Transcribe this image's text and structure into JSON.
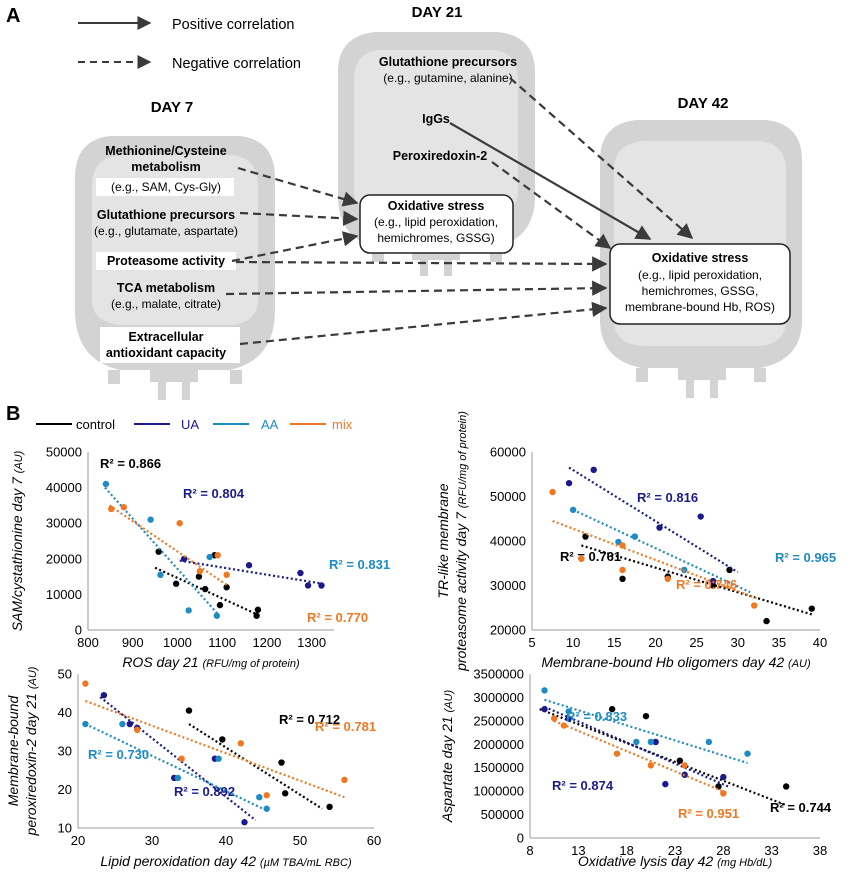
{
  "panel_a": {
    "label": "A",
    "legend": {
      "positive": "Positive correlation",
      "negative": "Negative correlation"
    },
    "day7": {
      "title": "DAY 7",
      "items": [
        {
          "title1": "Methionine/Cysteine",
          "title2": "metabolism",
          "sub": "(e.g., SAM, Cys-Gly)"
        },
        {
          "title1": "Glutathione precursors",
          "sub": "(e.g., glutamate, aspartate)"
        },
        {
          "title1": "Proteasome activity"
        },
        {
          "title1": "TCA metabolism",
          "sub": "(e.g., malate, citrate)"
        },
        {
          "title1": "Extracellular",
          "title2": "antioxidant capacity"
        }
      ]
    },
    "day21": {
      "title": "DAY 21",
      "items": [
        {
          "title1": "Glutathione precursors",
          "sub": "(e.g., gutamine, alanine)"
        },
        {
          "title1": "IgGs"
        },
        {
          "title1": "Peroxiredoxin-2"
        }
      ],
      "box": {
        "title": "Oxidative stress",
        "line1": "(e.g., lipid peroxidation,",
        "line2": "hemichromes, GSSG)"
      }
    },
    "day42": {
      "title": "DAY 42",
      "box": {
        "title": "Oxidative stress",
        "line1": "(e.g., lipid peroxidation,",
        "line2": "hemichromes, GSSG,",
        "line3": "membrane-bound Hb, ROS)"
      }
    }
  },
  "panel_b": {
    "label": "B",
    "legend": [
      {
        "name": "control",
        "color": "#000000"
      },
      {
        "name": "UA",
        "color": "#1a1a8c"
      },
      {
        "name": "AA",
        "color": "#1e8bc3"
      },
      {
        "name": "mix",
        "color": "#f07822"
      }
    ]
  },
  "chart_data": [
    {
      "type": "scatter",
      "ylabel": "SAM/cystathionine day 7",
      "yunit": "(AU)",
      "xlabel": "ROS day 21",
      "xunit": "(RFU/mg of protein)",
      "xlim": [
        800,
        1350
      ],
      "ylim": [
        0,
        50000
      ],
      "xticks": [
        800,
        900,
        1000,
        1100,
        1200,
        1300
      ],
      "yticks": [
        0,
        10000,
        20000,
        30000,
        40000,
        50000
      ],
      "series": [
        {
          "name": "control",
          "color": "#000000",
          "r2": "R² = 0.866",
          "x": [
            958,
            997,
            1048,
            1062,
            1083,
            1095,
            1110,
            1177,
            1180
          ],
          "y": [
            22000,
            13000,
            15000,
            11500,
            21000,
            7000,
            12000,
            4000,
            5700
          ],
          "fit": [
            [
              950,
              17500
            ],
            [
              1185,
              4000
            ]
          ]
        },
        {
          "name": "UA",
          "color": "#1a1a8c",
          "r2": "R² = 0.804",
          "x": [
            1015,
            1160,
            1275,
            1292,
            1322
          ],
          "y": [
            20000,
            18200,
            16000,
            12500,
            12500
          ],
          "fit": [
            [
              1005,
              19500
            ],
            [
              1325,
              13000
            ]
          ]
        },
        {
          "name": "AA",
          "color": "#1e8bc3",
          "r2": "R² = 0.831",
          "x": [
            840,
            940,
            962,
            1025,
            1072,
            1088
          ],
          "y": [
            41000,
            31000,
            15500,
            5500,
            20500,
            4000
          ],
          "fit": [
            [
              838,
              40000
            ],
            [
              1090,
              4500
            ]
          ]
        },
        {
          "name": "mix",
          "color": "#f07822",
          "r2": "R² = 0.770",
          "x": [
            852,
            880,
            1005,
            1050,
            1090,
            1110
          ],
          "y": [
            34000,
            34500,
            30000,
            16500,
            21000,
            15500
          ],
          "fit": [
            [
              848,
              35000
            ],
            [
              1112,
              12500
            ]
          ]
        }
      ]
    },
    {
      "type": "scatter",
      "ylabel": "TR-like membrane proteasome activity day 7",
      "yunit": "(RFU/mg of protein)",
      "xlabel": "Membrane-bound Hb oligomers day 42",
      "xunit": "(AU)",
      "xlim": [
        5,
        40
      ],
      "ylim": [
        20000,
        60000
      ],
      "xticks": [
        5,
        10,
        15,
        20,
        25,
        30,
        35,
        40
      ],
      "yticks": [
        20000,
        30000,
        40000,
        50000,
        60000
      ],
      "series": [
        {
          "name": "control",
          "color": "#000000",
          "r2": "R² = 0.761",
          "x": [
            11.5,
            16,
            21.5,
            27,
            29,
            33.5,
            39
          ],
          "y": [
            41000,
            31500,
            32000,
            30000,
            33500,
            22000,
            24800
          ],
          "fit": [
            [
              11,
              39000
            ],
            [
              39,
              23500
            ]
          ]
        },
        {
          "name": "UA",
          "color": "#1a1a8c",
          "r2": "R² = 0.816",
          "x": [
            9.5,
            12.5,
            20.5,
            25.5,
            27
          ],
          "y": [
            53000,
            56000,
            43000,
            45500,
            31000
          ],
          "fit": [
            [
              9.5,
              56500
            ],
            [
              30,
              33000
            ]
          ]
        },
        {
          "name": "AA",
          "color": "#1e8bc3",
          "r2": "R² = 0.965",
          "x": [
            10,
            15.5,
            17.5,
            23.5
          ],
          "y": [
            47000,
            39800,
            41000,
            33500
          ],
          "fit": [
            [
              10,
              47000
            ],
            [
              31.5,
              28500
            ]
          ]
        },
        {
          "name": "mix",
          "color": "#f07822",
          "r2": "R² = 0.746",
          "x": [
            7.5,
            11,
            16,
            16,
            21.5,
            32
          ],
          "y": [
            51000,
            36000,
            39000,
            33500,
            31500,
            25500
          ],
          "fit": [
            [
              7.5,
              44500
            ],
            [
              32.5,
              27000
            ]
          ]
        }
      ]
    },
    {
      "type": "scatter",
      "ylabel": "Membrane-bound peroxiredoxin-2 day 21",
      "yunit": "(AU)",
      "xlabel": "Lipid peroxidation day 42",
      "xunit": "(µM TBA/mL RBC)",
      "xlim": [
        20,
        60
      ],
      "ylim": [
        10,
        50
      ],
      "xticks": [
        20,
        30,
        40,
        50,
        60
      ],
      "yticks": [
        10,
        20,
        30,
        40,
        50
      ],
      "series": [
        {
          "name": "control",
          "color": "#000000",
          "r2": "R² = 0.712",
          "x": [
            35,
            39.5,
            47.5,
            48,
            54
          ],
          "y": [
            40.5,
            33,
            27,
            19,
            15.5
          ],
          "fit": [
            [
              35,
              37
            ],
            [
              53,
              15
            ]
          ]
        },
        {
          "name": "UA",
          "color": "#1a1a8c",
          "r2": "R² = 0.892",
          "x": [
            23.5,
            27,
            28,
            33,
            38.5,
            42.5
          ],
          "y": [
            44.5,
            37,
            36,
            23,
            28,
            11.5
          ],
          "fit": [
            [
              23,
              44
            ],
            [
              44,
              12
            ]
          ]
        },
        {
          "name": "AA",
          "color": "#1e8bc3",
          "r2": "R² = 0.730",
          "x": [
            21,
            26,
            33.5,
            39,
            44.5,
            45.5
          ],
          "y": [
            37,
            37,
            23,
            28,
            18,
            15
          ],
          "fit": [
            [
              21,
              37
            ],
            [
              45,
              15
            ]
          ]
        },
        {
          "name": "mix",
          "color": "#f07822",
          "r2": "R² = 0.781",
          "x": [
            21,
            28,
            34,
            42,
            45.5,
            56
          ],
          "y": [
            47.5,
            35.5,
            28,
            32,
            18.5,
            22.5
          ],
          "fit": [
            [
              21,
              43
            ],
            [
              56,
              18
            ]
          ]
        }
      ]
    },
    {
      "type": "scatter",
      "ylabel": "Aspartate day 21",
      "yunit": "(AU)",
      "xlabel": "Oxidative lysis day 42",
      "xunit": "(mg Hb/dL)",
      "xlim": [
        8,
        38
      ],
      "ylim": [
        0,
        3500000
      ],
      "xticks": [
        8,
        13,
        18,
        23,
        28,
        33,
        38
      ],
      "yticks": [
        0,
        500000,
        1000000,
        1500000,
        2000000,
        2500000,
        3000000,
        3500000
      ],
      "series": [
        {
          "name": "control",
          "color": "#000000",
          "r2": "R² = 0.744",
          "x": [
            16.5,
            20,
            23.5,
            27.5,
            34.5
          ],
          "y": [
            2750000,
            2600000,
            1650000,
            1100000,
            1100000
          ],
          "fit": [
            [
              9,
              2750000
            ],
            [
              34.5,
              700000
            ]
          ]
        },
        {
          "name": "UA",
          "color": "#1a1a8c",
          "r2": "R² = 0.874",
          "x": [
            9.5,
            12,
            21,
            22,
            24,
            28
          ],
          "y": [
            2750000,
            2550000,
            2050000,
            1150000,
            1350000,
            1300000
          ],
          "fit": [
            [
              9.5,
              2800000
            ],
            [
              28.5,
              1100000
            ]
          ]
        },
        {
          "name": "AA",
          "color": "#1e8bc3",
          "r2": "R² = 0.833",
          "x": [
            9.5,
            12,
            19,
            20.5,
            26.5,
            30.5
          ],
          "y": [
            3150000,
            2700000,
            2050000,
            2050000,
            2050000,
            1800000
          ],
          "fit": [
            [
              9.5,
              2950000
            ],
            [
              30.5,
              1600000
            ]
          ]
        },
        {
          "name": "mix",
          "color": "#f07822",
          "r2": "R² = 0.951",
          "x": [
            10.5,
            11.5,
            17,
            20.5,
            24,
            28
          ],
          "y": [
            2550000,
            2400000,
            1800000,
            1550000,
            1550000,
            950000
          ],
          "fit": [
            [
              10.5,
              2500000
            ],
            [
              28.5,
              950000
            ]
          ]
        }
      ]
    }
  ]
}
